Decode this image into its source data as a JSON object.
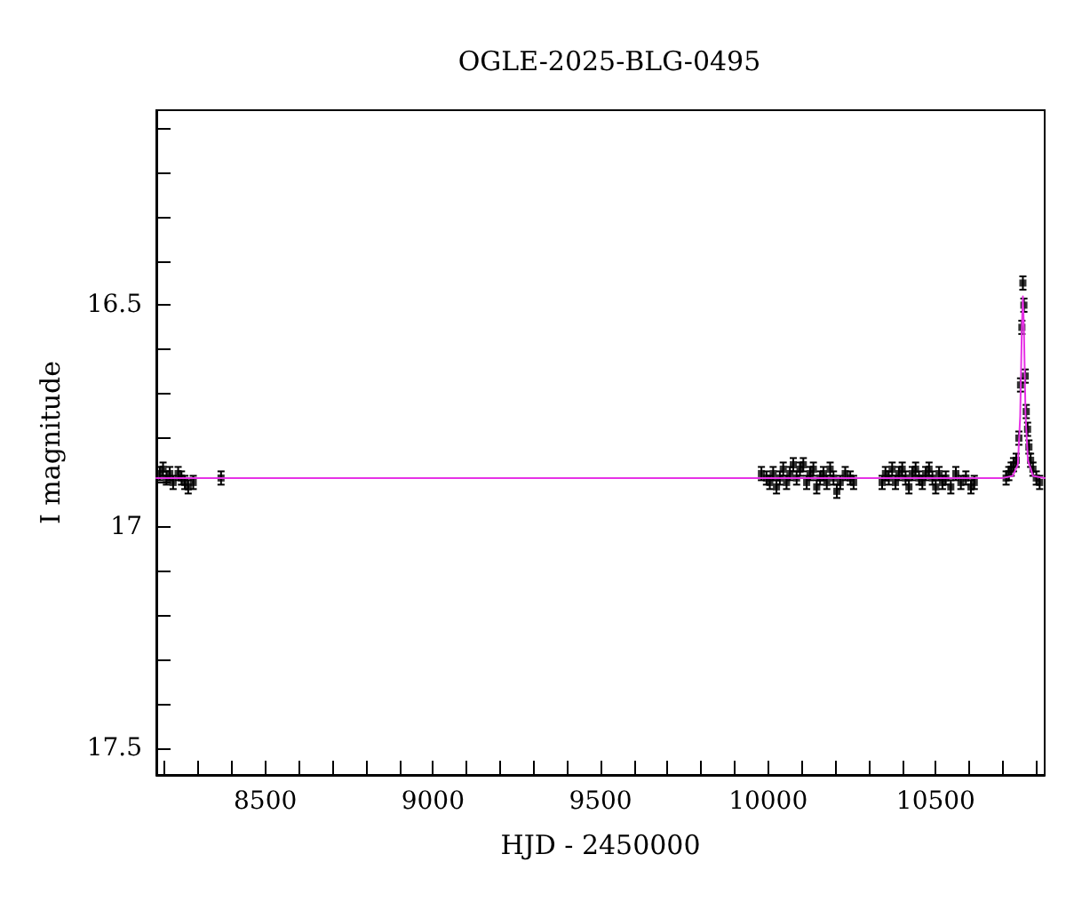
{
  "chart_data": {
    "type": "scatter",
    "title": "OGLE-2025-BLG-0495",
    "xlabel": "HJD - 2450000",
    "ylabel": "I magnitude",
    "xlim": [
      8175,
      10825
    ],
    "ylim": [
      17.56,
      16.06
    ],
    "xticks": [
      {
        "value": 8200,
        "label": null
      },
      {
        "value": 8300,
        "label": null
      },
      {
        "value": 8400,
        "label": null
      },
      8500,
      {
        "value": 8600,
        "label": null
      },
      {
        "value": 8700,
        "label": null
      },
      {
        "value": 8800,
        "label": null
      },
      {
        "value": 8900,
        "label": null
      },
      9000,
      {
        "value": 9100,
        "label": null
      },
      {
        "value": 9200,
        "label": null
      },
      {
        "value": 9300,
        "label": null
      },
      {
        "value": 9400,
        "label": null
      },
      9500,
      {
        "value": 9600,
        "label": null
      },
      {
        "value": 9700,
        "label": null
      },
      {
        "value": 9800,
        "label": null
      },
      {
        "value": 9900,
        "label": null
      },
      10000,
      {
        "value": 10100,
        "label": null
      },
      {
        "value": 10200,
        "label": null
      },
      {
        "value": 10300,
        "label": null
      },
      {
        "value": 10400,
        "label": null
      },
      10500,
      {
        "value": 10600,
        "label": null
      },
      {
        "value": 10700,
        "label": null
      },
      {
        "value": 10800,
        "label": null
      }
    ],
    "yticks": [
      {
        "value": 16.1,
        "label": null
      },
      {
        "value": 16.2,
        "label": null
      },
      {
        "value": 16.3,
        "label": null
      },
      {
        "value": 16.4,
        "label": null
      },
      16.5,
      {
        "value": 16.6,
        "label": null
      },
      {
        "value": 16.7,
        "label": null
      },
      {
        "value": 16.8,
        "label": null
      },
      {
        "value": 16.9,
        "label": null
      },
      17,
      {
        "value": 17.1,
        "label": null
      },
      {
        "value": 17.2,
        "label": null
      },
      {
        "value": 17.3,
        "label": null
      },
      {
        "value": 17.4,
        "label": null
      },
      17.5
    ],
    "grid": false,
    "series": [
      {
        "color": "#000000",
        "marker": "square",
        "x": [
          8185,
          8195,
          8205,
          8215,
          8225,
          8240,
          8250,
          8260,
          8270,
          8285,
          8368,
          9980,
          9995,
          10005,
          10015,
          10025,
          10035,
          10045,
          10055,
          10065,
          10075,
          10085,
          10095,
          10105,
          10115,
          10125,
          10135,
          10145,
          10155,
          10165,
          10175,
          10185,
          10195,
          10205,
          10215,
          10230,
          10245,
          10255,
          10340,
          10350,
          10360,
          10370,
          10380,
          10390,
          10400,
          10410,
          10420,
          10430,
          10440,
          10450,
          10460,
          10470,
          10480,
          10490,
          10500,
          10510,
          10520,
          10530,
          10545,
          10560,
          10575,
          10590,
          10605,
          10615,
          10710,
          10718,
          10725,
          10732,
          10740,
          10748,
          10753,
          10757,
          10760,
          10763,
          10767,
          10770,
          10774,
          10778,
          10783,
          10790,
          10800,
          10810
        ],
        "values": [
          16.88,
          16.87,
          16.89,
          16.88,
          16.9,
          16.88,
          16.89,
          16.9,
          16.91,
          16.9,
          16.89,
          16.88,
          16.89,
          16.9,
          16.88,
          16.91,
          16.89,
          16.87,
          16.9,
          16.88,
          16.86,
          16.89,
          16.87,
          16.86,
          16.9,
          16.88,
          16.87,
          16.91,
          16.89,
          16.88,
          16.9,
          16.87,
          16.89,
          16.92,
          16.9,
          16.88,
          16.89,
          16.9,
          16.9,
          16.88,
          16.89,
          16.87,
          16.9,
          16.88,
          16.87,
          16.89,
          16.91,
          16.88,
          16.87,
          16.89,
          16.9,
          16.88,
          16.87,
          16.89,
          16.91,
          16.88,
          16.9,
          16.89,
          16.91,
          16.88,
          16.9,
          16.89,
          16.91,
          16.9,
          16.89,
          16.88,
          16.87,
          16.86,
          16.85,
          16.8,
          16.68,
          16.55,
          16.45,
          16.5,
          16.66,
          16.74,
          16.78,
          16.82,
          16.85,
          16.87,
          16.89,
          16.9
        ],
        "errors": [
          0.015,
          0.015,
          0.015,
          0.015,
          0.015,
          0.015,
          0.015,
          0.015,
          0.015,
          0.015,
          0.015,
          0.015,
          0.015,
          0.015,
          0.015,
          0.015,
          0.015,
          0.015,
          0.015,
          0.015,
          0.015,
          0.015,
          0.015,
          0.015,
          0.015,
          0.015,
          0.015,
          0.015,
          0.015,
          0.015,
          0.015,
          0.015,
          0.015,
          0.015,
          0.015,
          0.015,
          0.015,
          0.015,
          0.015,
          0.015,
          0.015,
          0.015,
          0.015,
          0.015,
          0.015,
          0.015,
          0.015,
          0.015,
          0.015,
          0.015,
          0.015,
          0.015,
          0.015,
          0.015,
          0.015,
          0.015,
          0.015,
          0.015,
          0.015,
          0.015,
          0.015,
          0.015,
          0.015,
          0.015,
          0.015,
          0.015,
          0.015,
          0.015,
          0.015,
          0.015,
          0.015,
          0.015,
          0.015,
          0.015,
          0.015,
          0.015,
          0.015,
          0.015,
          0.015,
          0.015,
          0.015,
          0.015
        ]
      },
      {
        "type": "line",
        "color": "#e632e6",
        "marker": "none",
        "line_style": "solid",
        "x": [
          8175,
          10700,
          10730,
          10745,
          10752,
          10757,
          10760,
          10763,
          10768,
          10775,
          10790,
          10825
        ],
        "values": [
          16.89,
          16.89,
          16.885,
          16.86,
          16.75,
          16.55,
          16.48,
          16.55,
          16.75,
          16.85,
          16.885,
          16.89
        ]
      }
    ]
  }
}
